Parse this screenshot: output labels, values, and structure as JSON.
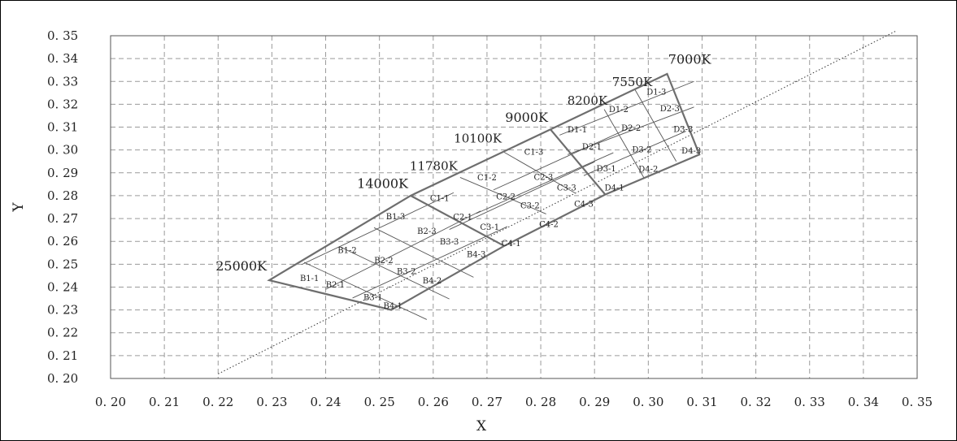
{
  "chart_data": {
    "type": "line",
    "title": "",
    "xlabel": "X",
    "ylabel": "Y",
    "xlim": [
      0.2,
      0.35
    ],
    "ylim": [
      0.2,
      0.35
    ],
    "grid": true,
    "x_ticks": [
      "0. 20",
      "0. 21",
      "0. 22",
      "0. 23",
      "0. 24",
      "0. 25",
      "0. 26",
      "0. 27",
      "0. 28",
      "0. 29",
      "0. 30",
      "0. 31",
      "0. 32",
      "0. 33",
      "0. 34",
      "0. 35"
    ],
    "y_ticks": [
      "0. 20",
      "0. 21",
      "0. 22",
      "0. 23",
      "0. 24",
      "0. 25",
      "0. 26",
      "0. 27",
      "0. 28",
      "0. 29",
      "0. 30",
      "0. 31",
      "0. 32",
      "0. 33",
      "0. 34",
      "0. 35"
    ],
    "x_tick_values": [
      0.2,
      0.21,
      0.22,
      0.23,
      0.24,
      0.25,
      0.26,
      0.27,
      0.28,
      0.29,
      0.3,
      0.31,
      0.32,
      0.33,
      0.34,
      0.35
    ],
    "y_tick_values": [
      0.2,
      0.21,
      0.22,
      0.23,
      0.24,
      0.25,
      0.26,
      0.27,
      0.28,
      0.29,
      0.3,
      0.31,
      0.32,
      0.33,
      0.34,
      0.35
    ],
    "planckian_locus": {
      "style": "dotted",
      "x": [
        0.22,
        0.346
      ],
      "y": [
        0.202,
        0.352
      ]
    },
    "cct_labels": [
      {
        "text": "25000K",
        "x": 0.2295,
        "y": 0.243
      },
      {
        "text": "14000K",
        "x": 0.2558,
        "y": 0.2805
      },
      {
        "text": "11780K",
        "x": 0.265,
        "y": 0.2883
      },
      {
        "text": "10100K",
        "x": 0.2732,
        "y": 0.3005
      },
      {
        "text": "9000K",
        "x": 0.2818,
        "y": 0.3095
      },
      {
        "text": "8200K",
        "x": 0.2915,
        "y": 0.3177
      },
      {
        "text": "7550K",
        "x": 0.2975,
        "y": 0.3265
      },
      {
        "text": "7000K",
        "x": 0.304,
        "y": 0.3335
      }
    ],
    "bins": [
      {
        "name": "B1-1",
        "x": 0.237,
        "y": 0.2437
      },
      {
        "name": "B1-2",
        "x": 0.244,
        "y": 0.256
      },
      {
        "name": "B1-3",
        "x": 0.253,
        "y": 0.2708
      },
      {
        "name": "B2-1",
        "x": 0.2418,
        "y": 0.2408
      },
      {
        "name": "B2-2",
        "x": 0.2508,
        "y": 0.2515
      },
      {
        "name": "B2-3",
        "x": 0.2588,
        "y": 0.2643
      },
      {
        "name": "B3-1",
        "x": 0.2488,
        "y": 0.2353
      },
      {
        "name": "B3-2",
        "x": 0.255,
        "y": 0.2468
      },
      {
        "name": "B3-3",
        "x": 0.263,
        "y": 0.2597
      },
      {
        "name": "B4-1",
        "x": 0.2525,
        "y": 0.2317
      },
      {
        "name": "B4-2",
        "x": 0.2598,
        "y": 0.2427
      },
      {
        "name": "B4-3",
        "x": 0.268,
        "y": 0.2542
      },
      {
        "name": "C1-1",
        "x": 0.2612,
        "y": 0.2787
      },
      {
        "name": "C1-2",
        "x": 0.27,
        "y": 0.2878
      },
      {
        "name": "C1-3",
        "x": 0.2787,
        "y": 0.299
      },
      {
        "name": "C2-1",
        "x": 0.2655,
        "y": 0.2705
      },
      {
        "name": "C2-2",
        "x": 0.2735,
        "y": 0.2795
      },
      {
        "name": "C2-3",
        "x": 0.2805,
        "y": 0.288
      },
      {
        "name": "C3-1",
        "x": 0.2705,
        "y": 0.2662
      },
      {
        "name": "C3-2",
        "x": 0.278,
        "y": 0.2755
      },
      {
        "name": "C3-3",
        "x": 0.2848,
        "y": 0.2833
      },
      {
        "name": "C4-1",
        "x": 0.2745,
        "y": 0.259
      },
      {
        "name": "C4-2",
        "x": 0.2815,
        "y": 0.2673
      },
      {
        "name": "C4-3",
        "x": 0.288,
        "y": 0.2762
      },
      {
        "name": "D1-1",
        "x": 0.2868,
        "y": 0.3088
      },
      {
        "name": "D1-2",
        "x": 0.2945,
        "y": 0.3177
      },
      {
        "name": "D1-3",
        "x": 0.3015,
        "y": 0.3253
      },
      {
        "name": "D2-1",
        "x": 0.2895,
        "y": 0.3013
      },
      {
        "name": "D2-2",
        "x": 0.2968,
        "y": 0.3095
      },
      {
        "name": "D2-3",
        "x": 0.304,
        "y": 0.318
      },
      {
        "name": "D3-1",
        "x": 0.2922,
        "y": 0.2917
      },
      {
        "name": "D3-2",
        "x": 0.2988,
        "y": 0.3
      },
      {
        "name": "D3-3",
        "x": 0.3065,
        "y": 0.309
      },
      {
        "name": "D4-1",
        "x": 0.2937,
        "y": 0.2833
      },
      {
        "name": "D4-2",
        "x": 0.3,
        "y": 0.2915
      },
      {
        "name": "D4-3",
        "x": 0.308,
        "y": 0.2995
      }
    ],
    "outline": {
      "x": [
        0.2295,
        0.2558,
        0.2818,
        0.3035,
        0.3095,
        0.292,
        0.2732,
        0.2522,
        0.2295
      ],
      "y": [
        0.243,
        0.28,
        0.309,
        0.3333,
        0.298,
        0.2805,
        0.258,
        0.23,
        0.243
      ]
    },
    "major_dividers": [
      {
        "x": [
          0.2558,
          0.2732
        ],
        "y": [
          0.28,
          0.258
        ]
      },
      {
        "x": [
          0.2818,
          0.292
        ],
        "y": [
          0.309,
          0.2805
        ]
      }
    ],
    "minor_lines": [
      {
        "x": [
          0.236,
          0.2588
        ],
        "y": [
          0.2508,
          0.2258
        ]
      },
      {
        "x": [
          0.2425,
          0.263
        ],
        "y": [
          0.2578,
          0.2348
        ]
      },
      {
        "x": [
          0.249,
          0.2675
        ],
        "y": [
          0.266,
          0.2443
        ]
      },
      {
        "x": [
          0.245,
          0.2738
        ],
        "y": [
          0.2352,
          0.2665
        ]
      },
      {
        "x": [
          0.24,
          0.2688
        ],
        "y": [
          0.239,
          0.2733
        ]
      },
      {
        "x": [
          0.2355,
          0.2638
        ],
        "y": [
          0.2498,
          0.2813
        ]
      },
      {
        "x": [
          0.265,
          0.281
        ],
        "y": [
          0.288,
          0.272
        ]
      },
      {
        "x": [
          0.2732,
          0.2865
        ],
        "y": [
          0.299,
          0.281
        ]
      },
      {
        "x": [
          0.263,
          0.29
        ],
        "y": [
          0.2652,
          0.2948
        ]
      },
      {
        "x": [
          0.268,
          0.2935
        ],
        "y": [
          0.2722,
          0.2988
        ]
      },
      {
        "x": [
          0.2712,
          0.297
        ],
        "y": [
          0.2825,
          0.3102
        ]
      },
      {
        "x": [
          0.2918,
          0.2992
        ],
        "y": [
          0.3178,
          0.2878
        ]
      },
      {
        "x": [
          0.2975,
          0.3052
        ],
        "y": [
          0.3265,
          0.295
        ]
      },
      {
        "x": [
          0.288,
          0.307
        ],
        "y": [
          0.2888,
          0.3082
        ]
      },
      {
        "x": [
          0.285,
          0.3085
        ],
        "y": [
          0.298,
          0.3188
        ]
      },
      {
        "x": [
          0.2835,
          0.3085
        ],
        "y": [
          0.3065,
          0.33
        ]
      }
    ]
  }
}
